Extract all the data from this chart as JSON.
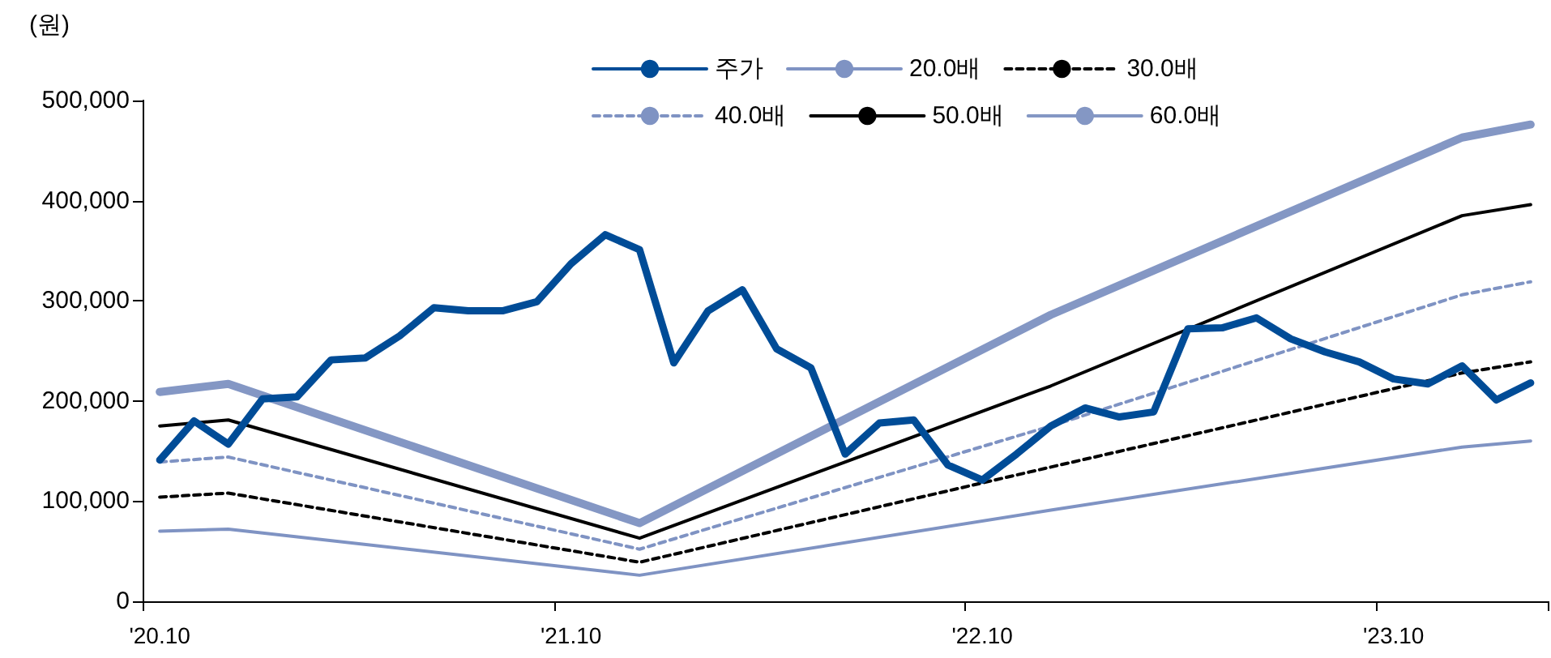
{
  "chart_data": {
    "type": "line",
    "ylabel": "(원)",
    "categories": [
      "'20.10",
      null,
      null,
      null,
      null,
      null,
      null,
      null,
      null,
      null,
      null,
      null,
      "'21.10",
      null,
      null,
      null,
      null,
      null,
      null,
      null,
      null,
      null,
      null,
      null,
      "'22.10",
      null,
      null,
      null,
      null,
      null,
      null,
      null,
      null,
      null,
      null,
      null,
      "'23.10",
      null,
      null,
      null,
      null
    ],
    "series": [
      {
        "name": "주가",
        "color": "#004c97",
        "values": [
          141000,
          180000,
          157000,
          202000,
          204000,
          241000,
          243000,
          265000,
          293000,
          290000,
          290000,
          299000,
          337000,
          366000,
          351000,
          238000,
          290000,
          311000,
          252000,
          233000,
          147000,
          178000,
          181000,
          136000,
          121000,
          147000,
          175000,
          193000,
          184000,
          189000,
          272000,
          273000,
          283000,
          262000,
          249000,
          239000,
          222000,
          217000,
          235000,
          201000,
          218000
        ]
      },
      {
        "name": "20.0배",
        "color": "#7f93c3",
        "line_style": "solid",
        "values": [
          70000,
          null,
          72000,
          null,
          null,
          null,
          null,
          null,
          null,
          null,
          null,
          null,
          null,
          null,
          26000,
          null,
          null,
          null,
          null,
          null,
          null,
          null,
          null,
          null,
          null,
          null,
          91000,
          null,
          null,
          null,
          null,
          null,
          null,
          null,
          null,
          null,
          null,
          null,
          154000,
          null,
          160000
        ]
      },
      {
        "name": "30.0배",
        "color": "#000000",
        "line_style": "dashed",
        "values": [
          104000,
          null,
          108000,
          null,
          null,
          null,
          null,
          null,
          null,
          null,
          null,
          null,
          null,
          null,
          39000,
          null,
          null,
          null,
          null,
          null,
          null,
          null,
          null,
          null,
          null,
          null,
          134000,
          null,
          null,
          null,
          null,
          null,
          null,
          null,
          null,
          null,
          null,
          null,
          228000,
          null,
          239000
        ]
      },
      {
        "name": "40.0배",
        "color": "#7f93c3",
        "line_style": "dashed",
        "values": [
          139000,
          null,
          144000,
          null,
          null,
          null,
          null,
          null,
          null,
          null,
          null,
          null,
          null,
          null,
          52000,
          null,
          null,
          null,
          null,
          null,
          null,
          null,
          null,
          null,
          null,
          null,
          175000,
          null,
          null,
          null,
          null,
          null,
          null,
          null,
          null,
          null,
          null,
          null,
          306000,
          null,
          319000
        ]
      },
      {
        "name": "50.0배",
        "color": "#000000",
        "line_style": "solid",
        "values": [
          175000,
          null,
          181000,
          null,
          null,
          null,
          null,
          null,
          null,
          null,
          null,
          null,
          null,
          null,
          63000,
          null,
          null,
          null,
          null,
          null,
          null,
          null,
          null,
          null,
          null,
          null,
          215000,
          null,
          null,
          null,
          null,
          null,
          null,
          null,
          null,
          null,
          null,
          null,
          385000,
          null,
          396000
        ]
      },
      {
        "name": "60.0배",
        "color": "#8497c4",
        "line_style": "solid",
        "values": [
          209000,
          null,
          217000,
          null,
          null,
          null,
          null,
          null,
          null,
          null,
          null,
          null,
          null,
          null,
          78000,
          null,
          null,
          null,
          null,
          null,
          null,
          null,
          null,
          null,
          null,
          null,
          286000,
          null,
          null,
          null,
          null,
          null,
          null,
          null,
          null,
          null,
          null,
          null,
          463000,
          null,
          476000
        ]
      }
    ],
    "ylim": [
      0,
      500000
    ],
    "yticks": [
      0,
      {
        "value": 100000,
        "label": "100,000"
      },
      {
        "value": 200000,
        "label": "200,000"
      },
      {
        "value": 300000,
        "label": "300,000"
      },
      {
        "value": 400000,
        "label": "400,000"
      },
      {
        "value": 500000,
        "label": "500,000"
      }
    ],
    "grid": false,
    "legend": "top",
    "marker": "none",
    "line_style": "solid"
  }
}
